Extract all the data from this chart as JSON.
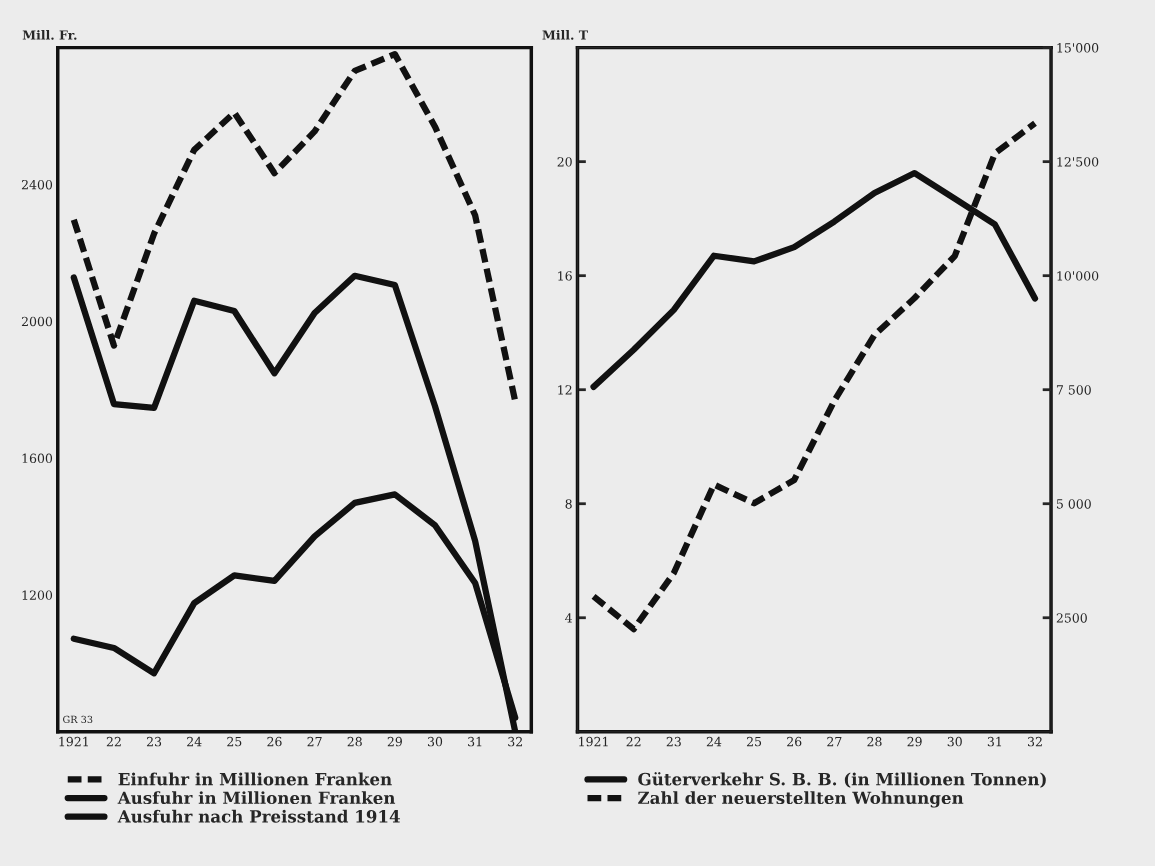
{
  "chart_data": [
    {
      "type": "line",
      "ylabel": "Mill. Fr.",
      "categories": [
        "1921",
        "22",
        "23",
        "24",
        "25",
        "26",
        "27",
        "28",
        "29",
        "30",
        "31",
        "32"
      ],
      "ylim": [
        800,
        2800
      ],
      "yticks": [
        1200,
        1600,
        2000,
        2400
      ],
      "legend": "bottom",
      "grid": false,
      "annotations": [
        "GR 33"
      ],
      "series": [
        {
          "name": "Einfuhr in Millionen Franken",
          "color": "#111111",
          "line_style": "dashed",
          "values": [
            2297,
            1929,
            2256,
            2501,
            2610,
            2433,
            2555,
            2732,
            2781,
            2569,
            2310,
            1766
          ]
        },
        {
          "name": "Ausfuhr in Millionen Franken",
          "color": "#111111",
          "line_style": "solid",
          "values": [
            2128,
            1758,
            1747,
            2060,
            2030,
            1848,
            2024,
            2133,
            2106,
            1752,
            1358,
            800
          ]
        },
        {
          "name": "Ausfuhr nach Preisstand 1914",
          "color": "#111111",
          "line_style": "solid",
          "values": [
            1072,
            1045,
            971,
            1176,
            1257,
            1241,
            1371,
            1469,
            1494,
            1404,
            1235,
            841
          ]
        }
      ]
    },
    {
      "type": "line",
      "ylabel": "Mill. T",
      "categories": [
        "1921",
        "22",
        "23",
        "24",
        "25",
        "26",
        "27",
        "28",
        "29",
        "30",
        "31",
        "32"
      ],
      "ylim": [
        0,
        24
      ],
      "yticks": [
        4,
        8,
        12,
        16,
        20
      ],
      "y2lim": [
        0,
        15000
      ],
      "y2ticks": [
        {
          "value": 2500,
          "label": "2500"
        },
        {
          "value": 5000,
          "label": "5 000"
        },
        {
          "value": 7500,
          "label": "7 500"
        },
        {
          "value": 10000,
          "label": "10'000"
        },
        {
          "value": 12500,
          "label": "12'500"
        },
        {
          "value": 15000,
          "label": "15'000"
        }
      ],
      "legend": "bottom",
      "grid": false,
      "series": [
        {
          "name": "Güterverkehr S. B. B. (in Millionen Tonnen)",
          "color": "#111111",
          "line_style": "solid",
          "values": [
            12.1,
            13.4,
            14.8,
            16.7,
            16.5,
            17.0,
            17.9,
            18.9,
            19.6,
            18.7,
            17.8,
            15.2
          ]
        },
        {
          "name": "Zahl der neuerstellten Wohnungen",
          "color": "#111111",
          "line_style": "dashed",
          "axis": "y2",
          "values": [
            2970,
            2250,
            3480,
            5420,
            5010,
            5520,
            7260,
            8700,
            9510,
            10430,
            12680,
            13340
          ]
        }
      ]
    }
  ]
}
